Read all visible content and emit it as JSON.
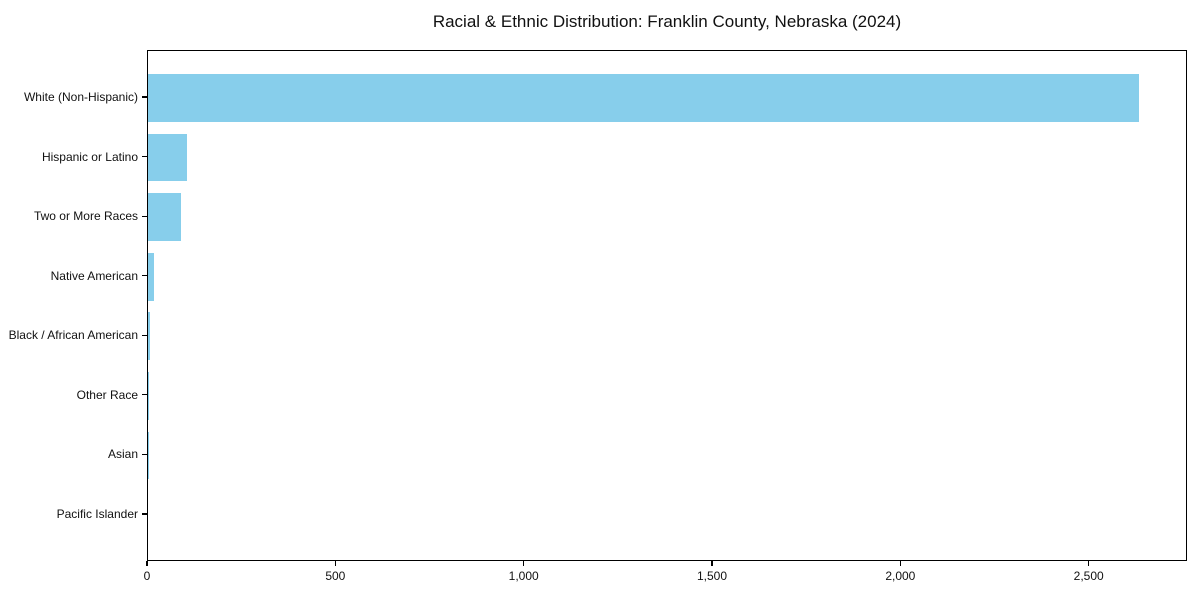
{
  "title": "Racial & Ethnic Distribution: Franklin County, Nebraska (2024)",
  "chart_data": {
    "type": "bar",
    "orientation": "horizontal",
    "title": "Racial & Ethnic Distribution: Franklin County, Nebraska (2024)",
    "xlabel": "",
    "ylabel": "",
    "categories": [
      "White (Non-Hispanic)",
      "Hispanic or Latino",
      "Two or More Races",
      "Native American",
      "Black / African American",
      "Other Race",
      "Asian",
      "Pacific Islander"
    ],
    "values": [
      2630,
      103,
      88,
      16,
      4,
      3,
      2,
      0
    ],
    "xlim": [
      0,
      2761
    ],
    "x_ticks": [
      0,
      500,
      1000,
      1500,
      2000,
      2500
    ],
    "x_tick_labels": [
      "0",
      "500",
      "1,000",
      "1,500",
      "2,000",
      "2,500"
    ],
    "bar_color": "#87CEEB",
    "grid": false,
    "legend": null
  },
  "colors": {
    "bar": "#87CEEB",
    "axis": "#000000",
    "text": "#111111",
    "background": "#ffffff"
  }
}
